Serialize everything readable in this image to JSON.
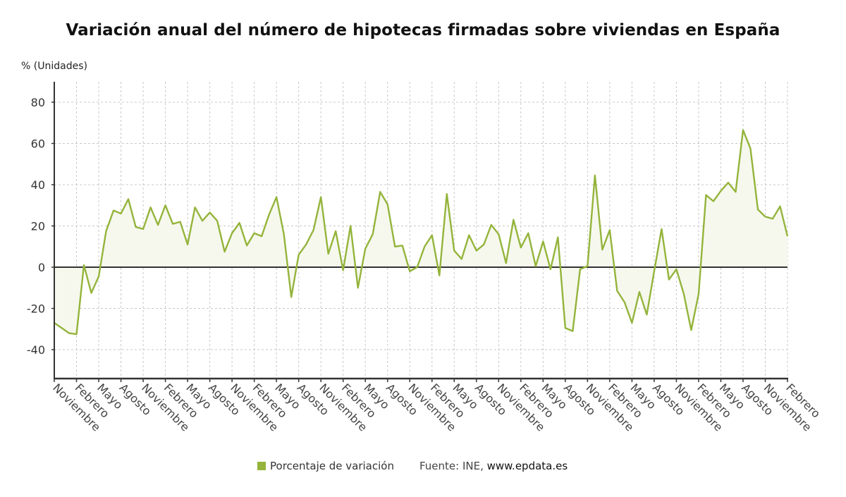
{
  "chart_data": {
    "type": "line",
    "title": "Variación anual del número de hipotecas firmadas sobre viviendas en España",
    "ylabel": "% (Unidades)",
    "xlabel": "",
    "ylim": [
      -53,
      90
    ],
    "yticks": [
      -40,
      -20,
      0,
      20,
      40,
      60,
      80
    ],
    "grid": true,
    "area_fill": true,
    "x_tick_labels": [
      "Noviembre",
      "Febrero",
      "Mayo",
      "Agosto",
      "Noviembre",
      "Febrero",
      "Mayo",
      "Agosto",
      "Noviembre",
      "Febrero",
      "Mayo",
      "Agosto",
      "Noviembre",
      "Febrero",
      "Mayo",
      "Agosto",
      "Noviembre",
      "Febrero",
      "Mayo",
      "Agosto",
      "Noviembre",
      "Febrero",
      "Mayo",
      "Agosto",
      "Noviembre",
      "Febrero",
      "Mayo",
      "Agosto",
      "Noviembre",
      "Febrero",
      "Mayo",
      "Agosto",
      "Noviembre",
      "Febrero"
    ],
    "x_tick_every_n_points": 3,
    "series": [
      {
        "name": "Porcentaje de variación",
        "color": "#94b43b",
        "values": [
          -27,
          -29.5,
          -32,
          -32.5,
          1,
          -12.5,
          -4.5,
          17.5,
          27.5,
          26,
          33,
          19.5,
          18.5,
          29,
          20.5,
          30,
          21,
          22,
          11,
          29,
          22.5,
          26.5,
          22.5,
          7.5,
          16.5,
          21.5,
          10.5,
          16.5,
          15,
          25.5,
          34,
          16,
          -14.5,
          6,
          11,
          18,
          34,
          6.5,
          17.5,
          -1.5,
          20,
          -10,
          9,
          16,
          36.5,
          30.5,
          10,
          10.5,
          -2,
          0,
          10,
          15.5,
          -4,
          35.5,
          8,
          4,
          15.5,
          8,
          11,
          20.5,
          16,
          2,
          23,
          9.5,
          16.5,
          0.5,
          12.5,
          -1,
          14.5,
          -29.5,
          -31,
          -1,
          0.5,
          44.5,
          8.5,
          18,
          -11.5,
          -17,
          -27,
          -12,
          -23,
          -2,
          18.5,
          -6,
          -1,
          -13,
          -30.5,
          -13,
          35,
          32,
          37,
          41,
          36.5,
          66.5,
          57.5,
          28,
          24.5,
          23.5,
          29.5,
          15
        ]
      }
    ],
    "legend": {
      "position": "bottom",
      "entries": [
        "Porcentaje de variación"
      ]
    },
    "source_label": "Fuente: INE,",
    "source_site": "www.epdata.es"
  }
}
